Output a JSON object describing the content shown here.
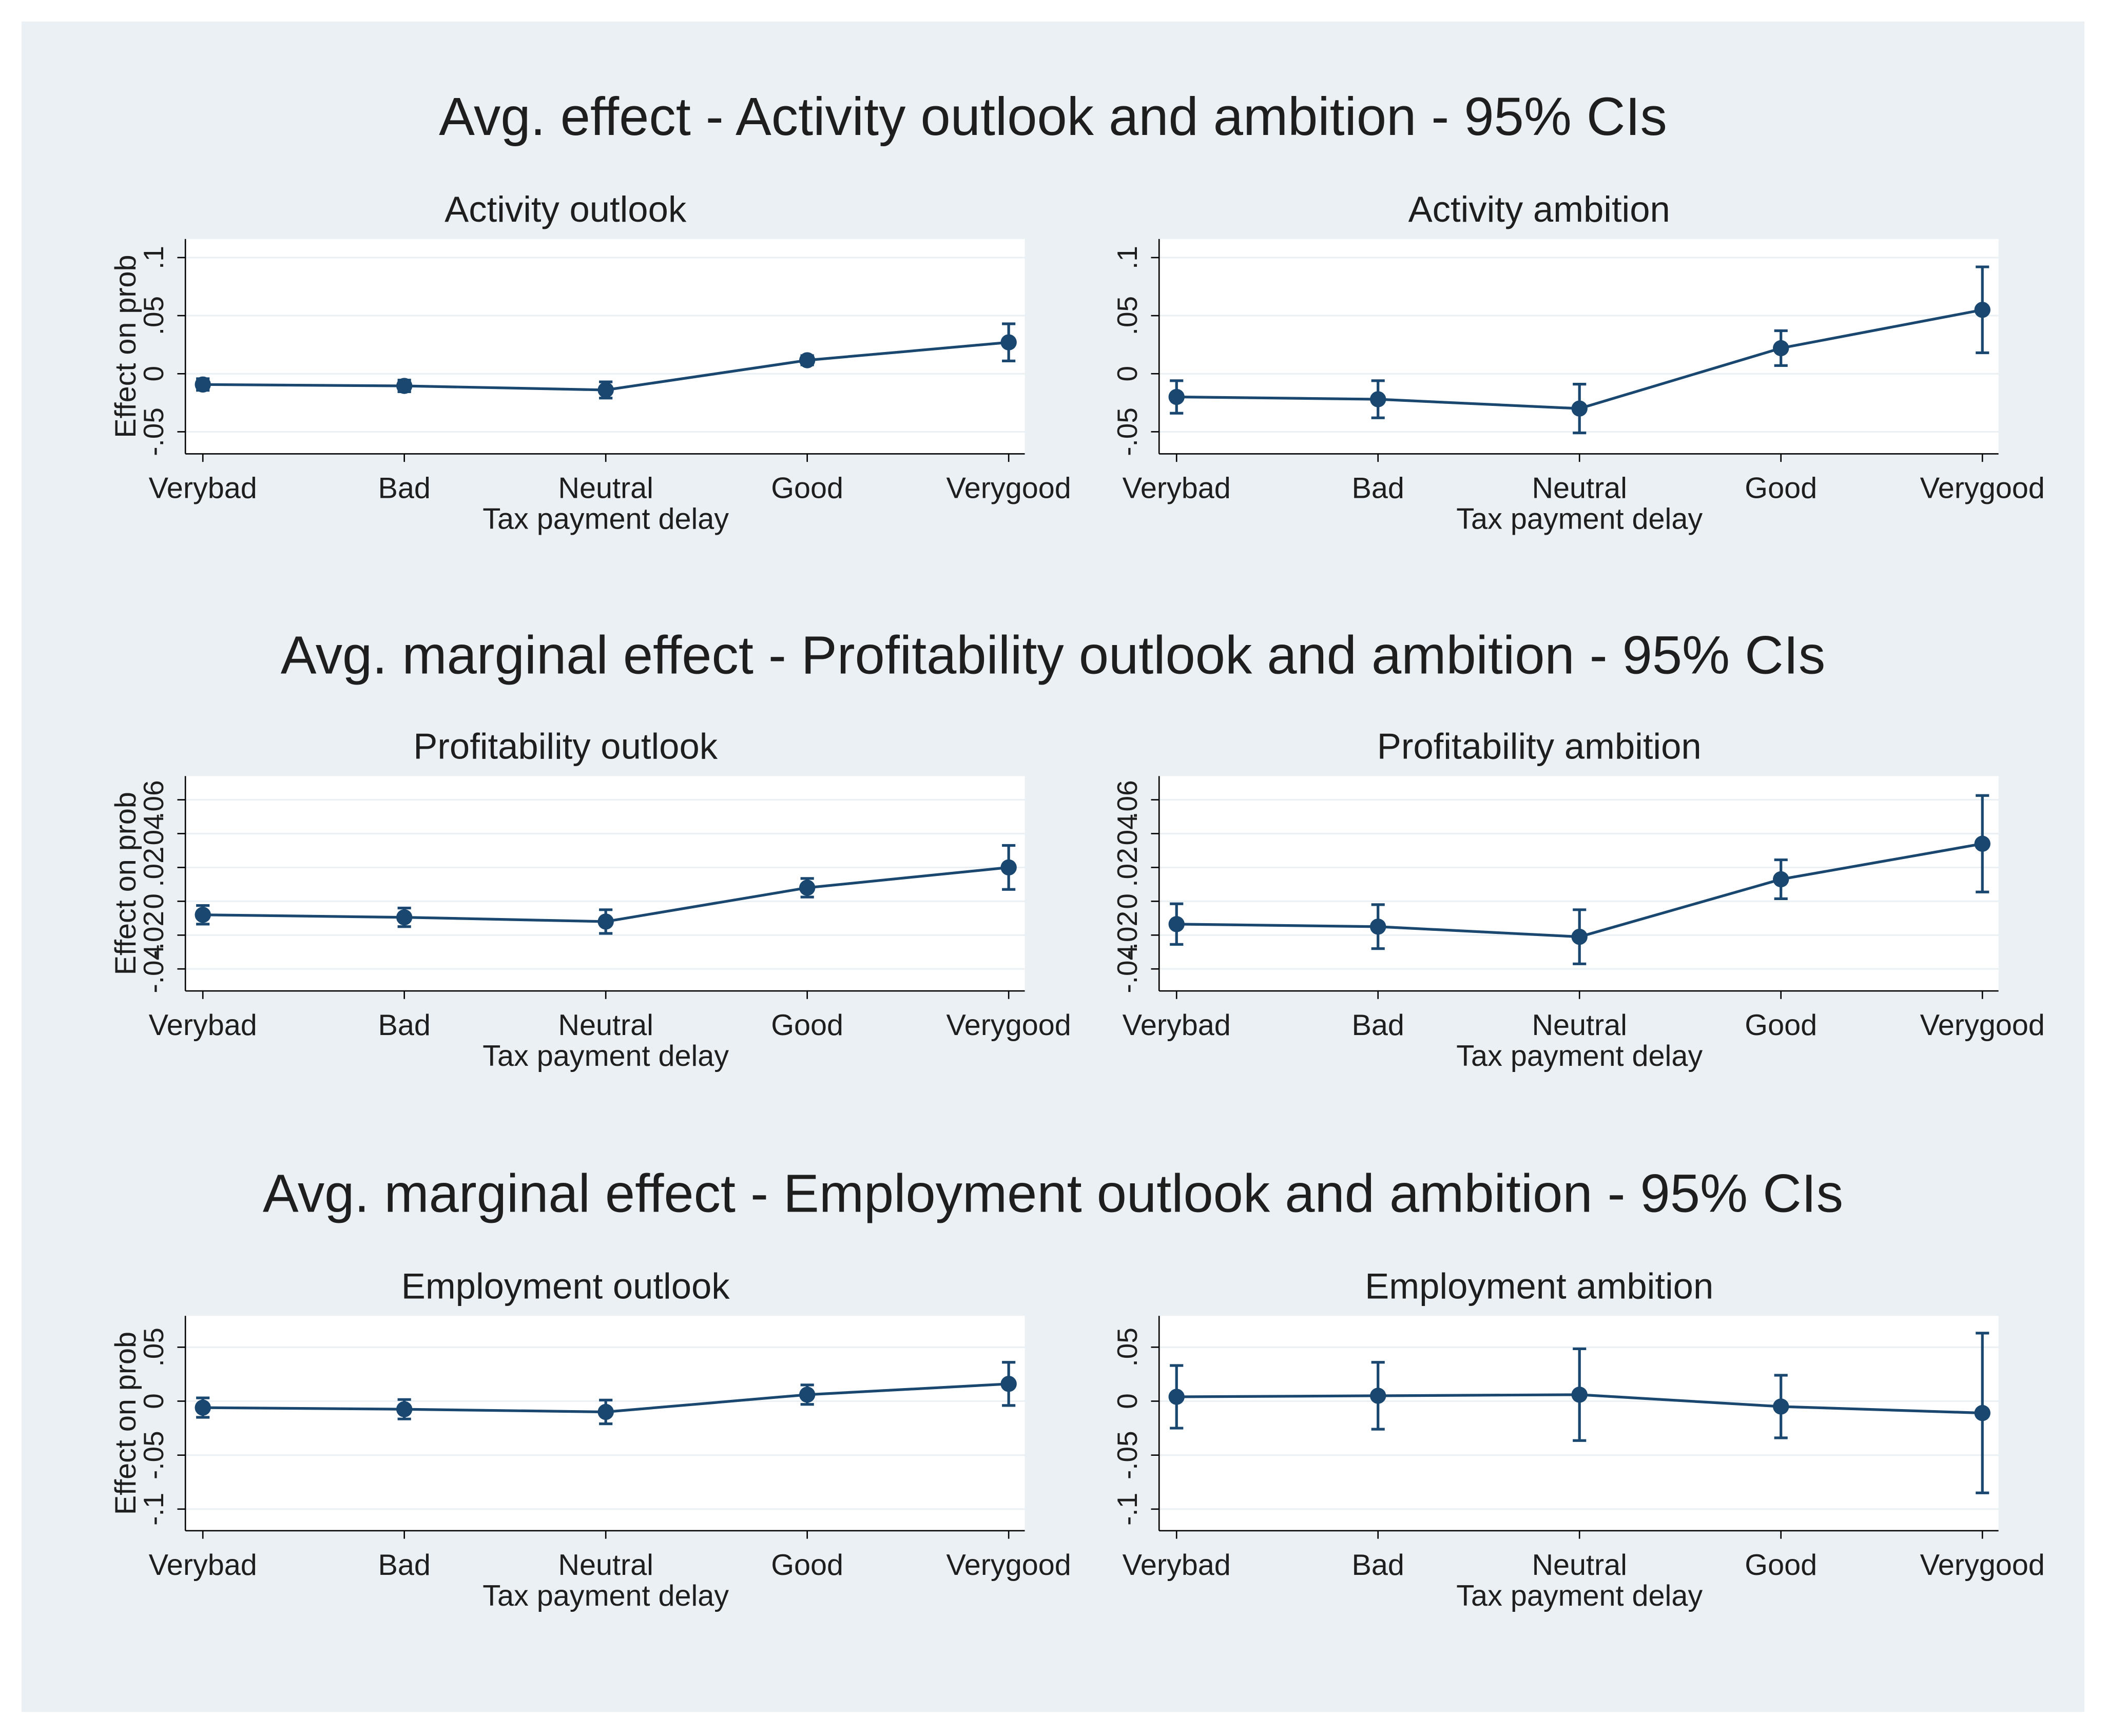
{
  "group_titles": [
    "Avg. effect - Activity outlook and ambition - 95% CIs",
    "Avg. marginal effect - Profitability outlook and ambition - 95% CIs",
    "Avg. marginal effect - Employment outlook and ambition - 95% CIs"
  ],
  "chart_data": [
    {
      "type": "line",
      "title": "Activity outlook",
      "x_label": "Tax payment delay",
      "y_label": "Effect on prob",
      "color": "#1a476f",
      "categories": [
        "Verybad",
        "Bad",
        "Neutral",
        "Good",
        "Verygood"
      ],
      "values": [
        -0.0093,
        -0.0105,
        -0.014,
        0.0116,
        0.027
      ],
      "errors": [
        0.005,
        0.005,
        0.007,
        0.004,
        0.016
      ],
      "ylim": [
        -0.069,
        0.116
      ],
      "yticks": [
        {
          "value": -0.05,
          "label": "-.05"
        },
        0,
        {
          "value": 0.05,
          "label": ".05"
        },
        {
          "value": 0.1,
          "label": ".1"
        }
      ],
      "grid": true
    },
    {
      "type": "line",
      "title": "Activity ambition",
      "x_label": "Tax payment delay",
      "color": "#1a476f",
      "categories": [
        "Verybad",
        "Bad",
        "Neutral",
        "Good",
        "Verygood"
      ],
      "values": [
        -0.02,
        -0.022,
        -0.03,
        0.022,
        0.055
      ],
      "errors": [
        0.014,
        0.016,
        0.021,
        0.015,
        0.037
      ],
      "ylim": [
        -0.069,
        0.116
      ],
      "yticks": [
        {
          "value": -0.05,
          "label": "-.05"
        },
        0,
        {
          "value": 0.05,
          "label": ".05"
        },
        {
          "value": 0.1,
          "label": ".1"
        }
      ],
      "grid": true
    },
    {
      "type": "line",
      "title": "Profitability outlook",
      "x_label": "Tax payment delay",
      "y_label": "Effect on prob",
      "color": "#1a476f",
      "categories": [
        "Verybad",
        "Bad",
        "Neutral",
        "Good",
        "Verygood"
      ],
      "values": [
        -0.008,
        -0.0095,
        -0.012,
        0.008,
        0.02
      ],
      "errors": [
        0.0055,
        0.0055,
        0.007,
        0.0055,
        0.013
      ],
      "ylim": [
        -0.053,
        0.074
      ],
      "yticks": [
        {
          "value": -0.04,
          "label": "-.04"
        },
        {
          "value": -0.02,
          "label": "-.02"
        },
        0,
        {
          "value": 0.02,
          "label": ".02"
        },
        {
          "value": 0.04,
          "label": ".04"
        },
        {
          "value": 0.06,
          "label": ".06"
        }
      ],
      "grid": true
    },
    {
      "type": "line",
      "title": "Profitability ambition",
      "x_label": "Tax payment delay",
      "color": "#1a476f",
      "categories": [
        "Verybad",
        "Bad",
        "Neutral",
        "Good",
        "Verygood"
      ],
      "values": [
        -0.0135,
        -0.015,
        -0.021,
        0.013,
        0.034
      ],
      "errors": [
        0.012,
        0.013,
        0.016,
        0.0115,
        0.0285
      ],
      "ylim": [
        -0.053,
        0.074
      ],
      "yticks": [
        {
          "value": -0.04,
          "label": "-.04"
        },
        {
          "value": -0.02,
          "label": "-.02"
        },
        0,
        {
          "value": 0.02,
          "label": ".02"
        },
        {
          "value": 0.04,
          "label": ".04"
        },
        {
          "value": 0.06,
          "label": ".06"
        }
      ],
      "grid": true
    },
    {
      "type": "line",
      "title": "Employment outlook",
      "x_label": "Tax payment delay",
      "y_label": "Effect on prob",
      "color": "#1a476f",
      "categories": [
        "Verybad",
        "Bad",
        "Neutral",
        "Good",
        "Verygood"
      ],
      "values": [
        -0.006,
        -0.0075,
        -0.01,
        0.006,
        0.016
      ],
      "errors": [
        0.009,
        0.009,
        0.011,
        0.009,
        0.02
      ],
      "ylim": [
        -0.12,
        0.079
      ],
      "yticks": [
        {
          "value": -0.1,
          "label": "-.1"
        },
        {
          "value": -0.05,
          "label": "-.05"
        },
        0,
        {
          "value": 0.05,
          "label": ".05"
        }
      ],
      "grid": true
    },
    {
      "type": "line",
      "title": "Employment ambition",
      "x_label": "Tax payment delay",
      "color": "#1a476f",
      "categories": [
        "Verybad",
        "Bad",
        "Neutral",
        "Good",
        "Verygood"
      ],
      "values": [
        0.004,
        0.005,
        0.006,
        -0.005,
        -0.011
      ],
      "errors": [
        0.029,
        0.031,
        0.0425,
        0.029,
        0.074
      ],
      "ylim": [
        -0.12,
        0.079
      ],
      "yticks": [
        {
          "value": -0.1,
          "label": "-.1"
        },
        {
          "value": -0.05,
          "label": "-.05"
        },
        0,
        {
          "value": 0.05,
          "label": ".05"
        }
      ],
      "grid": true
    }
  ]
}
